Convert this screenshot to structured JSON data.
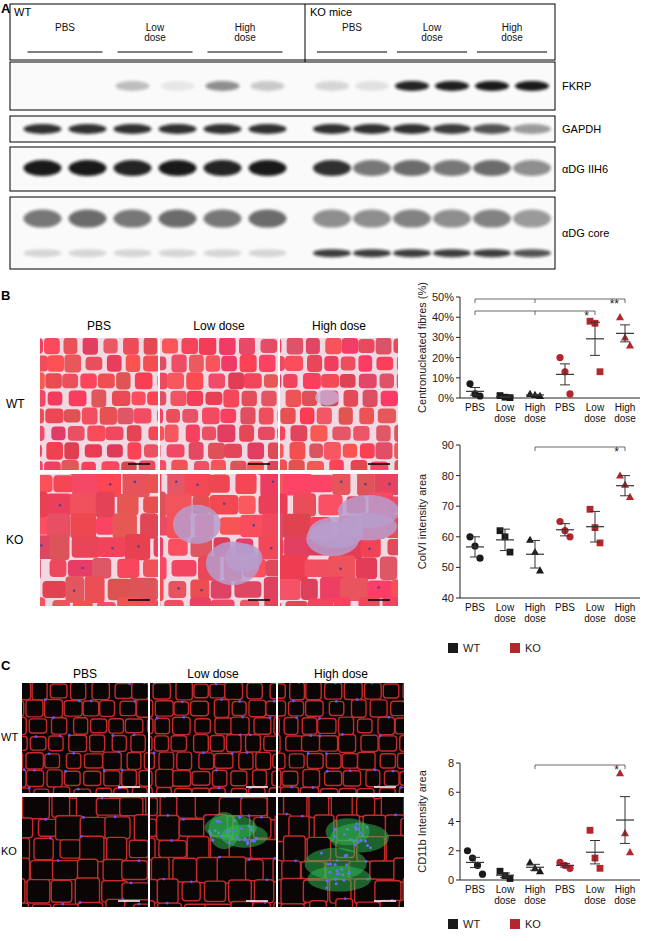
{
  "figure": {
    "panel_a": {
      "label": "A",
      "groups": [
        "WT",
        "KO mice"
      ],
      "lanes": [
        "PBS",
        "Low dose",
        "High dose"
      ],
      "blots": [
        "FKRP",
        "GAPDH",
        "αDG IIH6",
        "αDG core"
      ]
    },
    "panel_b": {
      "label": "B",
      "columns": [
        "PBS",
        "Low dose",
        "High dose"
      ],
      "rows": [
        "WT",
        "KO"
      ]
    },
    "panel_c": {
      "label": "C",
      "columns": [
        "PBS",
        "Low dose",
        "High dose"
      ],
      "rows": [
        "WT",
        "KO"
      ]
    }
  },
  "chart_data": [
    {
      "type": "scatter",
      "y_label": "Centronucleated fibres (%)",
      "categories": [
        "PBS",
        "Low dose",
        "High dose",
        "PBS",
        "Low dose",
        "High dose"
      ],
      "ylim": [
        0,
        50
      ],
      "yticks": [
        {
          "value": 0,
          "label": "0%"
        },
        {
          "value": 10,
          "label": "10%"
        },
        {
          "value": 20,
          "label": "20%"
        },
        {
          "value": 30,
          "label": "30%"
        },
        {
          "value": 40,
          "label": "40%"
        },
        {
          "value": 50,
          "label": "50%"
        }
      ],
      "series": [
        {
          "name": "WT",
          "color": "#1a1a1a",
          "values": [
            [
              7,
              2,
              1
            ],
            [
              1.2,
              0.4,
              0.2
            ],
            [
              2,
              1.5,
              1
            ],
            null,
            null,
            null
          ],
          "mean": [
            3.3,
            0.6,
            1.5,
            null,
            null,
            null
          ],
          "error": [
            1.9,
            0.3,
            0.3,
            null,
            null,
            null
          ]
        },
        {
          "name": "KO",
          "color": "#b3262c",
          "values": [
            null,
            null,
            null,
            [
              20,
              13,
              2
            ],
            [
              38,
              37,
              13
            ],
            [
              40,
              30,
              26
            ]
          ],
          "mean": [
            null,
            null,
            null,
            11.7,
            29.3,
            32
          ],
          "error": [
            null,
            null,
            null,
            5.2,
            8.2,
            4.2
          ]
        }
      ],
      "annotations": [
        {
          "text": "*",
          "from": [
            0,
            2
          ],
          "to": 4
        },
        {
          "text": "**",
          "from": [
            0,
            2
          ],
          "to": 5
        }
      ]
    },
    {
      "type": "scatter",
      "y_label": "ColVI intensity area",
      "categories": [
        "PBS",
        "Low dose",
        "High dose",
        "PBS",
        "Low dose",
        "High dose"
      ],
      "ylim": [
        40,
        90
      ],
      "yticks": [
        40,
        50,
        60,
        70,
        80,
        90
      ],
      "series": [
        {
          "name": "WT",
          "color": "#1a1a1a",
          "values": [
            [
              60,
              57,
              53
            ],
            [
              62,
              60,
              55
            ],
            [
              59,
              55,
              49
            ],
            null,
            null,
            null
          ],
          "mean": [
            56.7,
            59,
            54.3,
            null,
            null,
            null
          ],
          "error": [
            3.3,
            3.5,
            4.5,
            null,
            null,
            null
          ]
        },
        {
          "name": "KO",
          "color": "#b3262c",
          "values": [
            null,
            null,
            null,
            [
              65,
              62,
              60
            ],
            [
              69,
              63,
              58
            ],
            [
              80,
              77,
              73
            ]
          ],
          "mean": [
            null,
            null,
            null,
            62.3,
            63.3,
            76.7
          ],
          "error": [
            null,
            null,
            null,
            2,
            5,
            3.3
          ]
        }
      ],
      "legend": "bottom",
      "annotations": [
        {
          "text": "*",
          "from": 2,
          "to": 5
        }
      ]
    },
    {
      "type": "scatter",
      "y_label": "CD11b Intensity area",
      "categories": [
        "PBS",
        "Low dose",
        "High dose",
        "PBS",
        "Low dose",
        "High dose"
      ],
      "ylim": [
        0,
        8
      ],
      "yticks": [
        0,
        2,
        4,
        6,
        8
      ],
      "series": [
        {
          "name": "WT",
          "color": "#1a1a1a",
          "values": [
            [
              2,
              1.5,
              1,
              0.4
            ],
            [
              0.6,
              0.3,
              0.1
            ],
            [
              1.2,
              0.8,
              0.6
            ],
            null,
            null,
            null
          ],
          "mean": [
            1.2,
            0.33,
            0.87,
            null,
            null,
            null
          ],
          "error": [
            0.35,
            0.15,
            0.2,
            null,
            null,
            null
          ]
        },
        {
          "name": "KO",
          "color": "#b3262c",
          "values": [
            null,
            null,
            null,
            [
              1.2,
              1,
              0.8
            ],
            [
              3.4,
              1.5,
              0.8
            ],
            [
              7.3,
              3.2,
              1.9
            ]
          ],
          "mean": [
            null,
            null,
            null,
            1,
            1.9,
            4.1
          ],
          "error": [
            null,
            null,
            null,
            0.12,
            0.8,
            1.6
          ]
        }
      ],
      "legend": "bottom",
      "annotations": [
        {
          "text": "*",
          "from": 2,
          "to": 5
        }
      ]
    }
  ]
}
